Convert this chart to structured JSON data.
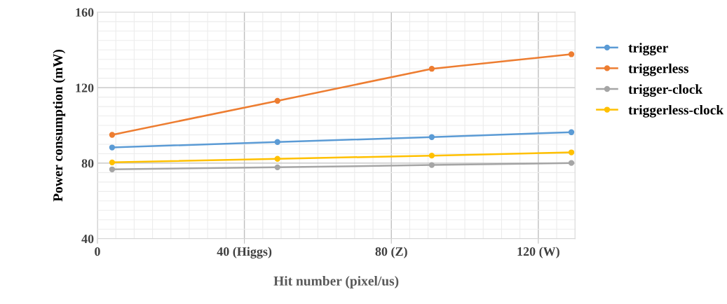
{
  "chart_data": {
    "type": "line",
    "xlabel": "Hit number (pixel/us)",
    "ylabel": "Power consumption (mW)",
    "x": [
      4,
      49,
      91,
      129
    ],
    "series": [
      {
        "name": "trigger",
        "color": "#5b9bd5",
        "values": [
          88.3,
          91.2,
          93.8,
          96.4
        ]
      },
      {
        "name": "triggerless",
        "color": "#ed7d31",
        "values": [
          95,
          113,
          130,
          137.7
        ]
      },
      {
        "name": "trigger-clock",
        "color": "#a5a5a5",
        "values": [
          76.7,
          77.8,
          79,
          80.1
        ]
      },
      {
        "name": "triggerless-clock",
        "color": "#ffc000",
        "values": [
          80.4,
          82.3,
          84,
          85.7
        ]
      }
    ],
    "xlim": [
      0,
      130
    ],
    "xticks": [
      0,
      {
        "value": 40,
        "label": "40 (Higgs)"
      },
      {
        "value": 80,
        "label": "80 (Z)"
      },
      {
        "value": 120,
        "label": "120 (W)"
      }
    ],
    "ylim": [
      40,
      160
    ],
    "yticks": [
      40,
      80,
      120,
      160
    ],
    "grid": true,
    "legend": "right",
    "marker": "circle",
    "line_style": "solid"
  }
}
